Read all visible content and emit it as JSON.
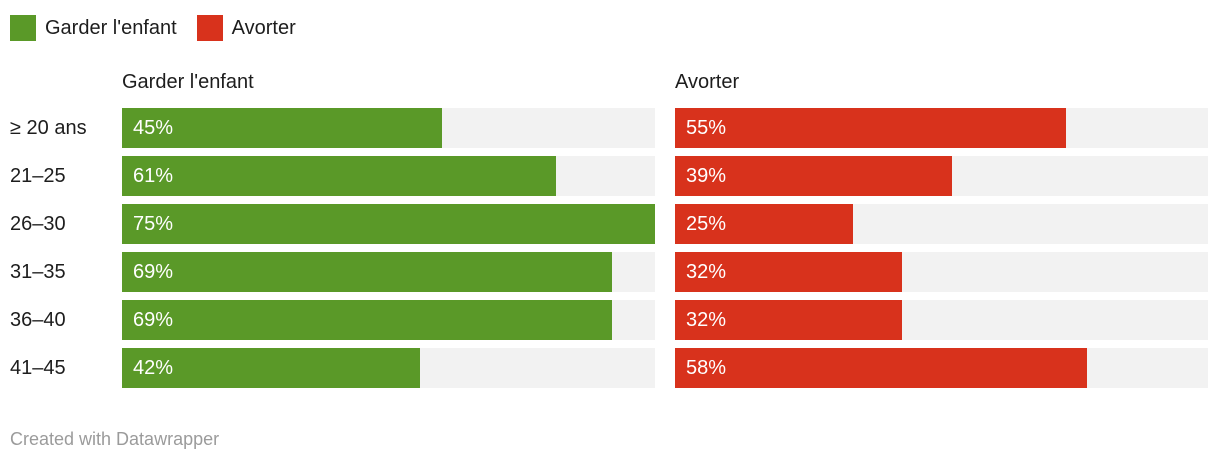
{
  "legend": {
    "items": [
      {
        "label": "Garder l'enfant",
        "color": "#5a9928"
      },
      {
        "label": "Avorter",
        "color": "#d8321c"
      }
    ]
  },
  "chart_data": {
    "type": "bar",
    "layout": "split-bars-horizontal",
    "title": "",
    "categories": [
      "≥ 20 ans",
      "21–25",
      "26–30",
      "31–35",
      "36–40",
      "41–45"
    ],
    "series": [
      {
        "name": "Garder l'enfant",
        "color": "#5a9928",
        "values": [
          45,
          61,
          75,
          69,
          69,
          42
        ]
      },
      {
        "name": "Avorter",
        "color": "#d8321c",
        "values": [
          55,
          39,
          25,
          32,
          32,
          58
        ]
      }
    ],
    "value_suffix": "%",
    "axis_max": 75,
    "track_color": "#f2f2f2",
    "grid": false,
    "legend_position": "top-left"
  },
  "footer": {
    "credit": "Created with Datawrapper"
  }
}
